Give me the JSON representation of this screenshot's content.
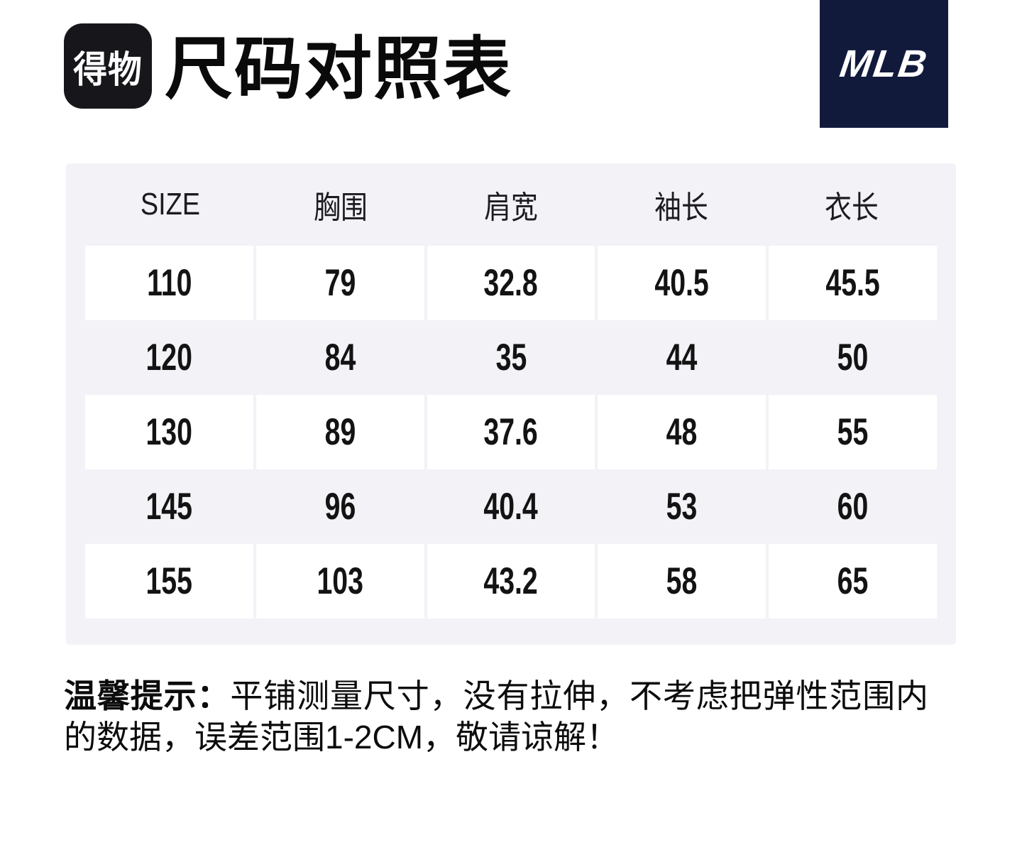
{
  "header": {
    "brand_logo": "得物",
    "title": "尺码对照表",
    "mlb_logo": "MLB"
  },
  "colors": {
    "mlb_navy": "#121a3c",
    "dewu_black": "#17171b",
    "panel_gray": "#f2f2f7",
    "row_white": "#ffffff",
    "text_dark": "#111111"
  },
  "chart_data": {
    "type": "table",
    "title": "尺码对照表",
    "columns": [
      "SIZE",
      "胸围",
      "肩宽",
      "袖长",
      "衣长"
    ],
    "rows": [
      [
        "110",
        "79",
        "32.8",
        "40.5",
        "45.5"
      ],
      [
        "120",
        "84",
        "35",
        "44",
        "50"
      ],
      [
        "130",
        "89",
        "37.6",
        "48",
        "55"
      ],
      [
        "145",
        "96",
        "40.4",
        "53",
        "60"
      ],
      [
        "155",
        "103",
        "43.2",
        "58",
        "65"
      ]
    ],
    "unit_note": "误差范围1-2CM"
  },
  "note": {
    "prefix": "温馨提示：",
    "body": "平铺测量尺寸，没有拉伸，不考虑把弹性范围内的数据，误差范围1-2CM，敬请谅解！"
  }
}
